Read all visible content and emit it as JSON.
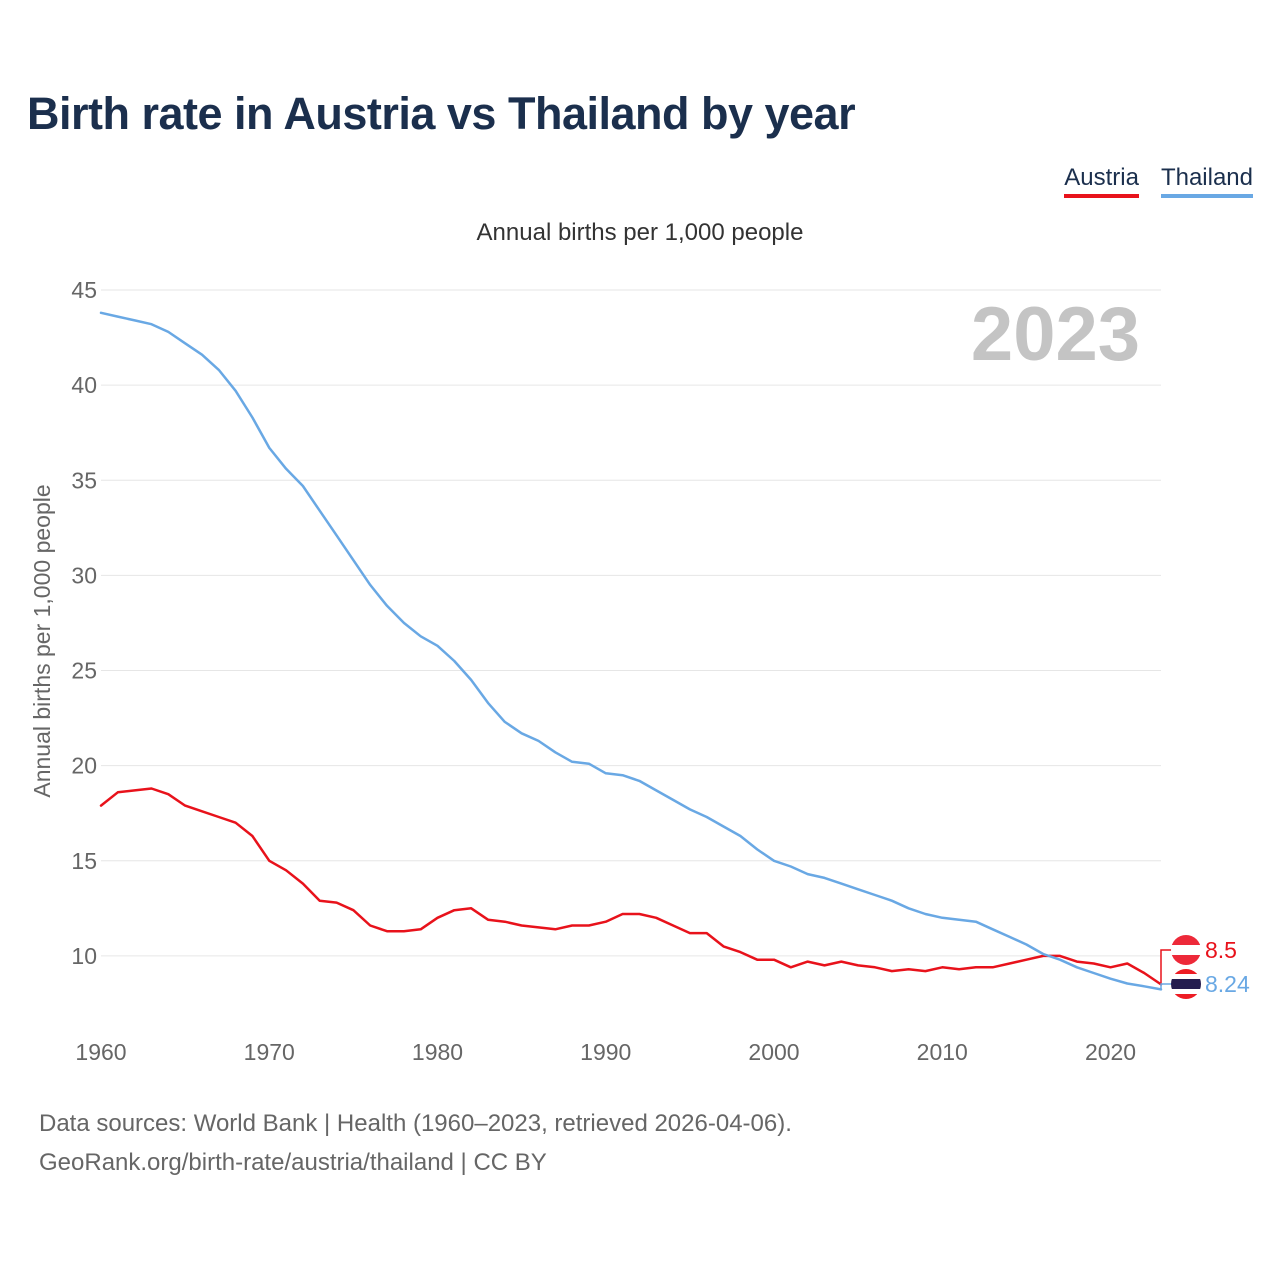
{
  "title": "Birth rate in Austria vs Thailand by year",
  "legend": [
    {
      "name": "Austria",
      "color": "#e8121b"
    },
    {
      "name": "Thailand",
      "color": "#69a8e4"
    }
  ],
  "chart_data": {
    "type": "line",
    "title": "Birth rate in Austria vs Thailand by year",
    "subtitle": "Annual births per 1,000 people",
    "ylabel": "Annual births per 1,000 people",
    "xlabel": "",
    "year_label": "2023",
    "xlim": [
      1960,
      2023
    ],
    "ylim": [
      6,
      45
    ],
    "xticks": [
      1960,
      1970,
      1980,
      1990,
      2000,
      2010,
      2020
    ],
    "yticks": [
      10,
      15,
      20,
      25,
      30,
      35,
      40,
      45
    ],
    "grid": true,
    "x": [
      1960,
      1961,
      1962,
      1963,
      1964,
      1965,
      1966,
      1967,
      1968,
      1969,
      1970,
      1971,
      1972,
      1973,
      1974,
      1975,
      1976,
      1977,
      1978,
      1979,
      1980,
      1981,
      1982,
      1983,
      1984,
      1985,
      1986,
      1987,
      1988,
      1989,
      1990,
      1991,
      1992,
      1993,
      1994,
      1995,
      1996,
      1997,
      1998,
      1999,
      2000,
      2001,
      2002,
      2003,
      2004,
      2005,
      2006,
      2007,
      2008,
      2009,
      2010,
      2011,
      2012,
      2013,
      2014,
      2015,
      2016,
      2017,
      2018,
      2019,
      2020,
      2021,
      2022,
      2023
    ],
    "series": [
      {
        "name": "Austria",
        "color": "#e8121b",
        "end_label": "8.5",
        "values": [
          17.9,
          18.6,
          18.7,
          18.8,
          18.5,
          17.9,
          17.6,
          17.3,
          17.0,
          16.3,
          15.0,
          14.5,
          13.8,
          12.9,
          12.8,
          12.4,
          11.6,
          11.3,
          11.3,
          11.4,
          12.0,
          12.4,
          12.5,
          11.9,
          11.8,
          11.6,
          11.5,
          11.4,
          11.6,
          11.6,
          11.8,
          12.2,
          12.2,
          12.0,
          11.6,
          11.2,
          11.2,
          10.5,
          10.2,
          9.8,
          9.8,
          9.4,
          9.7,
          9.5,
          9.7,
          9.5,
          9.4,
          9.2,
          9.3,
          9.2,
          9.4,
          9.3,
          9.4,
          9.4,
          9.6,
          9.8,
          10.0,
          10.0,
          9.7,
          9.6,
          9.4,
          9.6,
          9.1,
          8.5
        ]
      },
      {
        "name": "Thailand",
        "color": "#69a8e4",
        "end_label": "8.24",
        "values": [
          43.8,
          43.6,
          43.4,
          43.2,
          42.8,
          42.2,
          41.6,
          40.8,
          39.7,
          38.3,
          36.7,
          35.6,
          34.7,
          33.4,
          32.1,
          30.8,
          29.5,
          28.4,
          27.5,
          26.8,
          26.3,
          25.5,
          24.5,
          23.3,
          22.3,
          21.7,
          21.3,
          20.7,
          20.2,
          20.1,
          19.6,
          19.5,
          19.2,
          18.7,
          18.2,
          17.7,
          17.3,
          16.8,
          16.3,
          15.6,
          15.0,
          14.7,
          14.3,
          14.1,
          13.8,
          13.5,
          13.2,
          12.9,
          12.5,
          12.2,
          12.0,
          11.9,
          11.8,
          11.4,
          11.0,
          10.6,
          10.1,
          9.8,
          9.4,
          9.1,
          8.8,
          8.55,
          8.4,
          8.24
        ]
      }
    ]
  },
  "footer": {
    "line1": "Data sources: World Bank | Health (1960–2023, retrieved 2026-04-06).",
    "line2": "GeoRank.org/birth-rate/austria/thailand | CC BY"
  }
}
